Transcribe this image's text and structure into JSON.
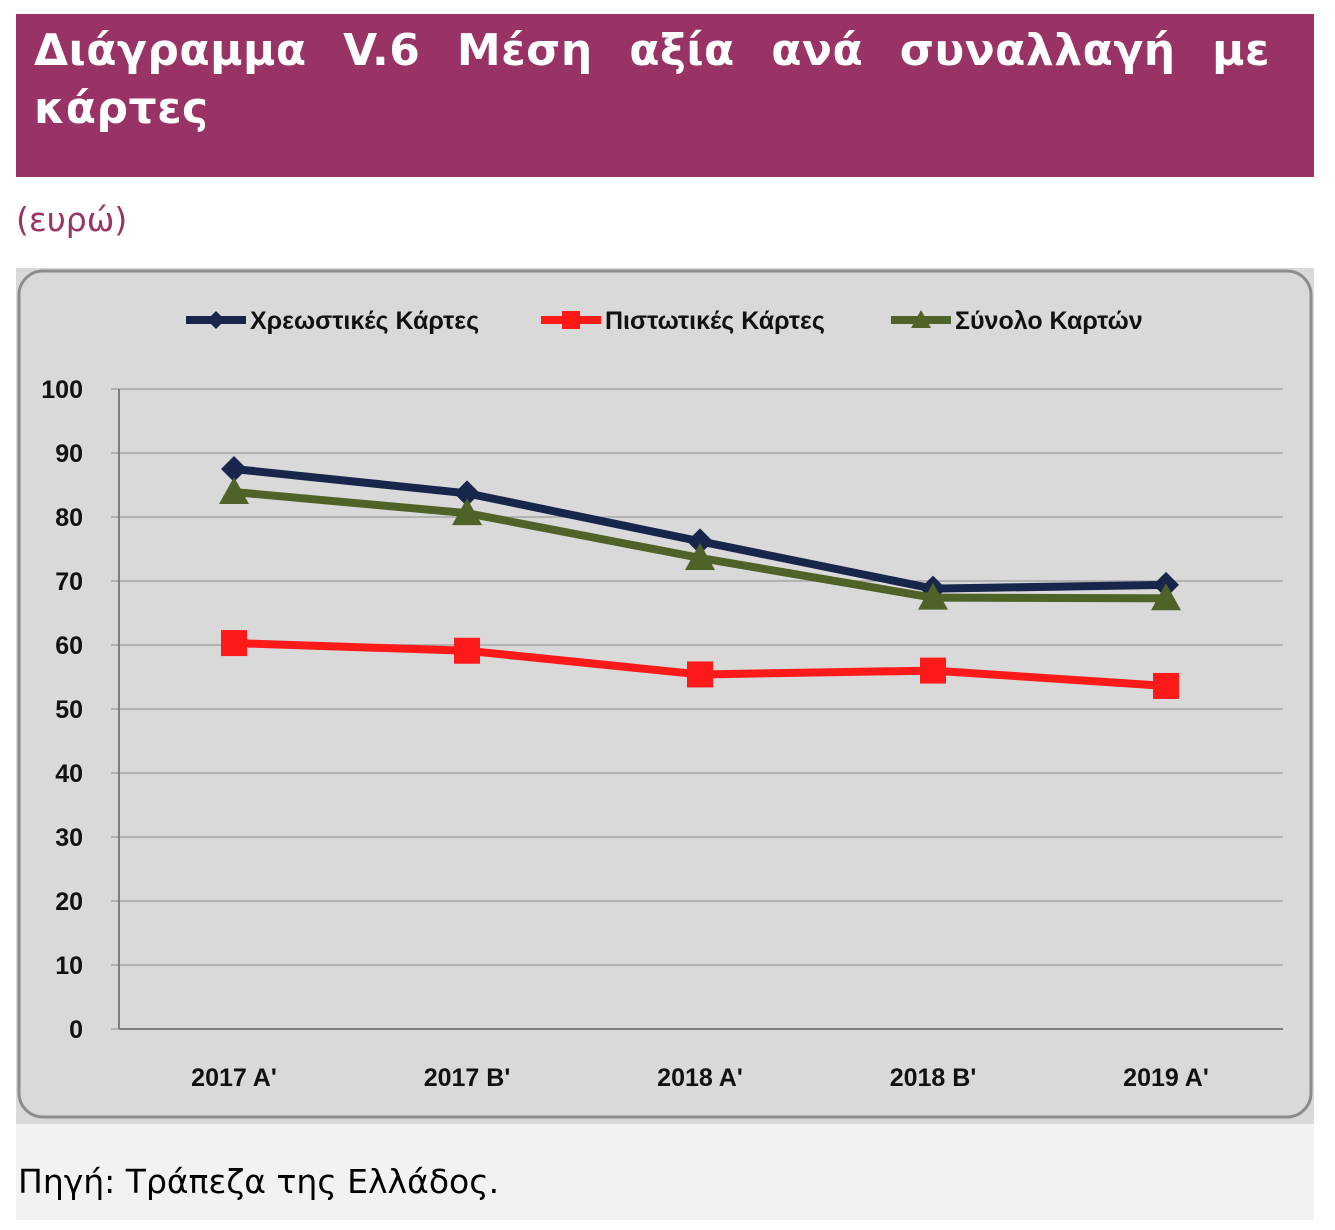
{
  "header": {
    "title": "Διάγραμμα V.6 Μέση αξία ανά συναλλαγή με κάρτες",
    "unit": "(ευρώ)"
  },
  "footer": {
    "source": "Πηγή: Τράπεζα της Ελλάδος."
  },
  "colors": {
    "title_bar": "#993366",
    "chart_bg": "#d9d9d9",
    "debit": "#17264a",
    "credit": "#ff1a1a",
    "total": "#4f6228"
  },
  "chart_data": {
    "type": "line",
    "title": "",
    "xlabel": "",
    "ylabel": "",
    "categories": [
      "2017 A'",
      "2017 B'",
      "2018 A'",
      "2018 B'",
      "2019 A'"
    ],
    "ylim": [
      0,
      100
    ],
    "yticks": [
      "0",
      "10",
      "20",
      "30",
      "40",
      "50",
      "60",
      "70",
      "80",
      "90",
      "100"
    ],
    "grid": true,
    "legend": "top",
    "series": [
      {
        "name": "Χρεωστικές Κάρτες",
        "values": [
          87.5,
          83.7,
          76.2,
          68.8,
          69.4
        ],
        "color": "#17264a",
        "marker": "diamond"
      },
      {
        "name": "Πιστωτικές Κάρτες",
        "values": [
          60.3,
          59.1,
          55.4,
          56.0,
          53.6
        ],
        "color": "#ff1a1a",
        "marker": "square"
      },
      {
        "name": "Σύνολο Καρτών",
        "values": [
          83.9,
          80.6,
          73.6,
          67.4,
          67.3
        ],
        "color": "#4f6228",
        "marker": "triangle"
      }
    ]
  }
}
